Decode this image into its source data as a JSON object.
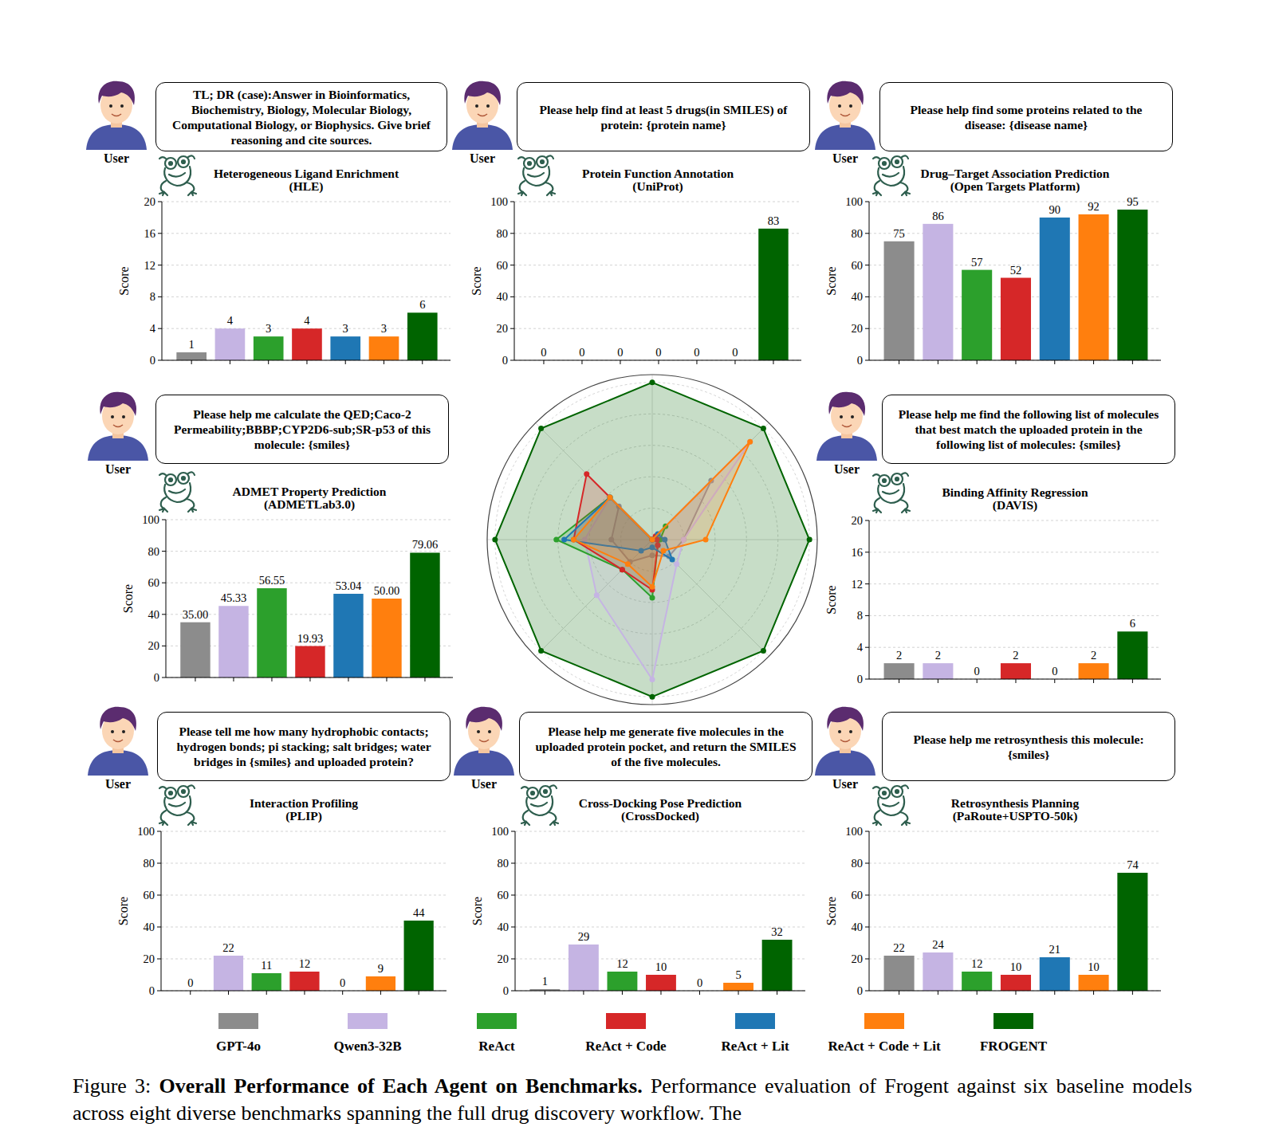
{
  "chart_data": [
    {
      "type": "bar",
      "title": "Heterogeneous Ligand Enrichment",
      "subtitle": "(HLE)",
      "y_label": "Score",
      "annotations": [
        "TL; DR (case):Answer in Bioinformatics, Biochemistry, Biology, Molecular Biology, Computational Biology, or Biophysics. Give brief reasoning and cite sources."
      ],
      "categories": [
        "GPT-4o",
        "Qwen3-32B",
        "ReAct",
        "ReAct + Code",
        "ReAct + Lit",
        "ReAct + Code + Lit",
        "FROGENT"
      ],
      "values": [
        1,
        4,
        3,
        4,
        3,
        3,
        6
      ],
      "colors": [
        "#8c8c8c",
        "#c5b4e3",
        "#2ca02c",
        "#d62728",
        "#1f77b4",
        "#ff7f0e",
        "#006400"
      ],
      "ylim": [
        0,
        20
      ],
      "yticks": [
        0,
        4,
        8,
        12,
        16,
        20
      ],
      "grid": true,
      "data_labels": true,
      "tick_labels": "y",
      "legend": "bottom"
    },
    {
      "type": "bar",
      "title": "Protein Function Annotation",
      "subtitle": "(UniProt)",
      "y_label": "Score",
      "annotations": [
        "Please help find at least 5 drugs(in SMILES) of protein: {protein name}"
      ],
      "categories": [
        "GPT-4o",
        "Qwen3-32B",
        "ReAct",
        "ReAct + Code",
        "ReAct + Lit",
        "ReAct + Code + Lit",
        "FROGENT"
      ],
      "values": [
        0,
        0,
        0,
        0,
        0,
        0,
        83
      ],
      "colors": [
        "#8c8c8c",
        "#c5b4e3",
        "#2ca02c",
        "#d62728",
        "#1f77b4",
        "#ff7f0e",
        "#006400"
      ],
      "ylim": [
        0,
        100
      ],
      "yticks": [
        0,
        20,
        40,
        60,
        80,
        100
      ],
      "grid": true,
      "data_labels": true,
      "tick_labels": "y"
    },
    {
      "type": "bar",
      "title": "Drug–Target Association Prediction",
      "subtitle": "(Open Targets Platform)",
      "y_label": "Score",
      "annotations": [
        "Please help find some proteins related to the disease: {disease name}"
      ],
      "categories": [
        "GPT-4o",
        "Qwen3-32B",
        "ReAct",
        "ReAct + Code",
        "ReAct + Lit",
        "ReAct + Code + Lit",
        "FROGENT"
      ],
      "values": [
        75,
        86,
        57,
        52,
        90,
        92,
        95
      ],
      "colors": [
        "#8c8c8c",
        "#c5b4e3",
        "#2ca02c",
        "#d62728",
        "#1f77b4",
        "#ff7f0e",
        "#006400"
      ],
      "ylim": [
        0,
        100
      ],
      "yticks": [
        0,
        20,
        40,
        60,
        80,
        100
      ],
      "grid": true,
      "data_labels": true,
      "tick_labels": "y"
    },
    {
      "type": "bar",
      "title": "ADMET Property Prediction",
      "subtitle": "(ADMETLab3.0)",
      "y_label": "Score",
      "annotations": [
        "Please help me calculate the QED;Caco-2 Permeability;BBBP;CYP2D6-sub;SR-p53 of this molecule: {smiles}"
      ],
      "categories": [
        "GPT-4o",
        "Qwen3-32B",
        "ReAct",
        "ReAct + Code",
        "ReAct + Lit",
        "ReAct + Code + Lit",
        "FROGENT"
      ],
      "values": [
        35.0,
        45.33,
        56.55,
        19.93,
        53.04,
        50.0,
        79.06
      ],
      "value_labels": [
        "35.00",
        "45.33",
        "56.55",
        "19.93",
        "53.04",
        "50.00",
        "79.06"
      ],
      "colors": [
        "#8c8c8c",
        "#c5b4e3",
        "#2ca02c",
        "#d62728",
        "#1f77b4",
        "#ff7f0e",
        "#006400"
      ],
      "ylim": [
        0,
        100
      ],
      "yticks": [
        0,
        20,
        40,
        60,
        80,
        100
      ],
      "grid": true,
      "data_labels": true,
      "tick_labels": "y"
    },
    {
      "type": "bar",
      "title": "Binding Affinity Regression",
      "subtitle": "(DAVIS)",
      "y_label": "Score",
      "annotations": [
        "Please help me find the following list of molecules that best match the uploaded protein in the following list of molecules: {smiles}"
      ],
      "categories": [
        "GPT-4o",
        "Qwen3-32B",
        "ReAct",
        "ReAct + Code",
        "ReAct + Lit",
        "ReAct + Code + Lit",
        "FROGENT"
      ],
      "values": [
        2,
        2,
        0,
        2,
        0,
        2,
        6
      ],
      "colors": [
        "#8c8c8c",
        "#c5b4e3",
        "#2ca02c",
        "#d62728",
        "#1f77b4",
        "#ff7f0e",
        "#006400"
      ],
      "ylim": [
        0,
        20
      ],
      "yticks": [
        0,
        4,
        8,
        12,
        16,
        20
      ],
      "grid": true,
      "data_labels": true,
      "tick_labels": "y"
    },
    {
      "type": "bar",
      "title": "Interaction Profiling",
      "subtitle": "(PLIP)",
      "y_label": "Score",
      "annotations": [
        "Please tell me how many hydrophobic contacts; hydrogen bonds; pi stacking; salt bridges; water bridges in {smiles} and uploaded protein?"
      ],
      "categories": [
        "GPT-4o",
        "Qwen3-32B",
        "ReAct",
        "ReAct + Code",
        "ReAct + Lit",
        "ReAct + Code + Lit",
        "FROGENT"
      ],
      "values": [
        0,
        22,
        11,
        12,
        0,
        9,
        44
      ],
      "colors": [
        "#8c8c8c",
        "#c5b4e3",
        "#2ca02c",
        "#d62728",
        "#1f77b4",
        "#ff7f0e",
        "#006400"
      ],
      "ylim": [
        0,
        100
      ],
      "yticks": [
        0,
        20,
        40,
        60,
        80,
        100
      ],
      "grid": true,
      "data_labels": true,
      "tick_labels": "y"
    },
    {
      "type": "bar",
      "title": "Cross-Docking Pose Prediction",
      "subtitle": "(CrossDocked)",
      "y_label": "Score",
      "annotations": [
        "Please help me generate five molecules in the uploaded protein pocket, and return the SMILES of the five molecules."
      ],
      "categories": [
        "GPT-4o",
        "Qwen3-32B",
        "ReAct",
        "ReAct + Code",
        "ReAct + Lit",
        "ReAct + Code + Lit",
        "FROGENT"
      ],
      "values": [
        1,
        29,
        12,
        10,
        0,
        5,
        32
      ],
      "colors": [
        "#8c8c8c",
        "#c5b4e3",
        "#2ca02c",
        "#d62728",
        "#1f77b4",
        "#ff7f0e",
        "#006400"
      ],
      "ylim": [
        0,
        100
      ],
      "yticks": [
        0,
        20,
        40,
        60,
        80,
        100
      ],
      "grid": true,
      "data_labels": true,
      "tick_labels": "y"
    },
    {
      "type": "bar",
      "title": "Retrosynthesis Planning",
      "subtitle": "(PaRoute+USPTO-50k)",
      "y_label": "Score",
      "annotations": [
        "Please help me retrosynthesis this molecule: {smiles}"
      ],
      "categories": [
        "GPT-4o",
        "Qwen3-32B",
        "ReAct",
        "ReAct + Code",
        "ReAct + Lit",
        "ReAct + Code + Lit",
        "FROGENT"
      ],
      "values": [
        22,
        24,
        12,
        10,
        21,
        10,
        74
      ],
      "colors": [
        "#8c8c8c",
        "#c5b4e3",
        "#2ca02c",
        "#d62728",
        "#1f77b4",
        "#ff7f0e",
        "#006400"
      ],
      "ylim": [
        0,
        100
      ],
      "yticks": [
        0,
        20,
        40,
        60,
        80,
        100
      ],
      "grid": true,
      "data_labels": true,
      "tick_labels": "y"
    },
    {
      "type": "radar",
      "categories": [
        null,
        null,
        null,
        null,
        null,
        null,
        null,
        null
      ],
      "series": [
        {
          "name": "FROGENT",
          "color": "#006400",
          "values": [
            1,
            1,
            1,
            1,
            1,
            1,
            1,
            1
          ]
        },
        {
          "name": "GPT-4o",
          "color": "#8c8c8c",
          "values": [
            0,
            0.53,
            0.2,
            0.15,
            0.1,
            0.2,
            0.26,
            0.3
          ]
        },
        {
          "name": "Qwen3-32B",
          "color": "#c5b4e3",
          "values": [
            0,
            0.88,
            0.2,
            0.22,
            0.89,
            0.5,
            0.43,
            0.38
          ]
        },
        {
          "name": "ReAct",
          "color": "#2ca02c",
          "values": [
            0,
            0.12,
            0.05,
            0.05,
            0.37,
            0.27,
            0.61,
            0.38
          ]
        },
        {
          "name": "ReAct + Code",
          "color": "#d62728",
          "values": [
            0,
            0.03,
            0.03,
            0.05,
            0.32,
            0.27,
            0.5,
            0.59
          ]
        },
        {
          "name": "ReAct + Lit",
          "color": "#1f77b4",
          "values": [
            0,
            0.05,
            0.08,
            0.18,
            0.05,
            0.1,
            0.56,
            0.38
          ]
        },
        {
          "name": "ReAct + Code + Lit",
          "color": "#ff7f0e",
          "values": [
            0,
            0.88,
            0.34,
            0.1,
            0.3,
            0.22,
            0.5,
            0.38
          ]
        }
      ],
      "ylim": [
        0,
        1.05
      ],
      "yticks": [
        0.2,
        0.4,
        0.6,
        0.8,
        1.0
      ],
      "grid": true,
      "tick_labels": false,
      "marker": "circle"
    }
  ],
  "user_label": "User",
  "caption": {
    "label": "Figure 3:",
    "title": "Overall Performance of Each Agent on Benchmarks.",
    "text": "Performance evaluation of Frogent against six baseline models across eight diverse benchmarks spanning the full drug discovery workflow. The"
  }
}
